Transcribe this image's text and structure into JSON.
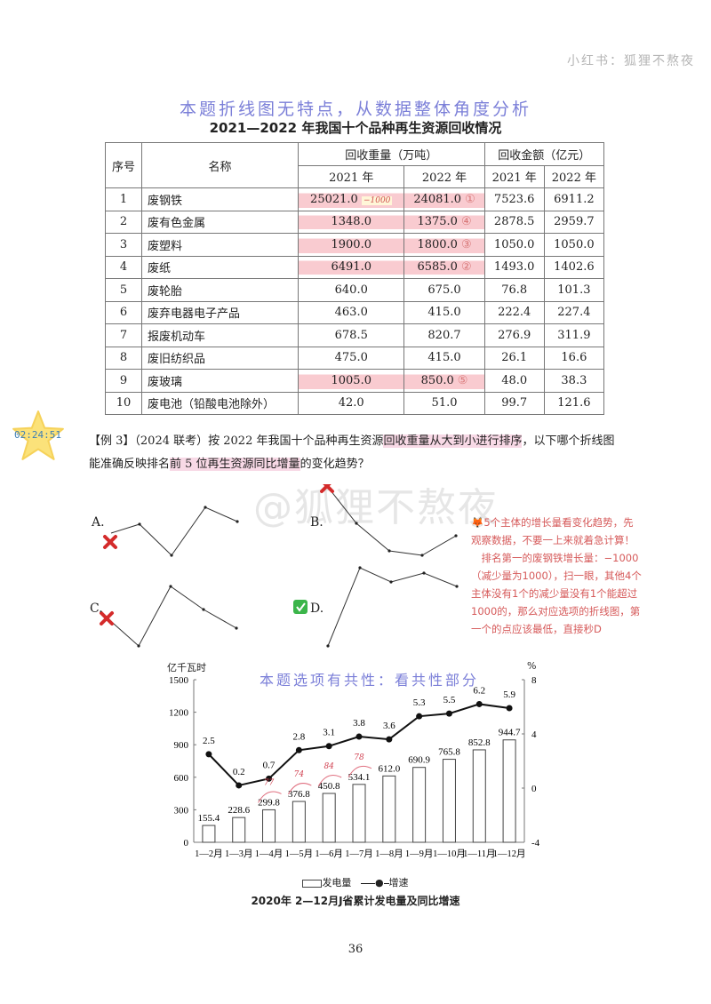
{
  "header": {
    "watermark": "小红书：狐狸不熬夜"
  },
  "annotation_top": "本题折线图无特点，从数据整体角度分析",
  "table": {
    "title": "2021—2022 年我国十个品种再生资源回收情况",
    "headers": {
      "seq": "序号",
      "name": "名称",
      "weight_group": "回收重量（万吨）",
      "amount_group": "回收金额（亿元）",
      "y2021": "2021 年",
      "y2022": "2022 年"
    },
    "rows": [
      {
        "seq": "1",
        "name": "废钢铁",
        "w2021": "25021.0",
        "w2022": "24081.0",
        "a2021": "7523.6",
        "a2022": "6911.2",
        "rank": "①",
        "note": "−1000"
      },
      {
        "seq": "2",
        "name": "废有色金属",
        "w2021": "1348.0",
        "w2022": "1375.0",
        "a2021": "2878.5",
        "a2022": "2959.7",
        "rank": "④"
      },
      {
        "seq": "3",
        "name": "废塑料",
        "w2021": "1900.0",
        "w2022": "1800.0",
        "a2021": "1050.0",
        "a2022": "1050.0",
        "rank": "③"
      },
      {
        "seq": "4",
        "name": "废纸",
        "w2021": "6491.0",
        "w2022": "6585.0",
        "a2021": "1493.0",
        "a2022": "1402.6",
        "rank": "②"
      },
      {
        "seq": "5",
        "name": "废轮胎",
        "w2021": "640.0",
        "w2022": "675.0",
        "a2021": "76.8",
        "a2022": "101.3"
      },
      {
        "seq": "6",
        "name": "废弃电器电子产品",
        "w2021": "463.0",
        "w2022": "415.0",
        "a2021": "222.4",
        "a2022": "227.4"
      },
      {
        "seq": "7",
        "name": "报废机动车",
        "w2021": "678.5",
        "w2022": "820.7",
        "a2021": "276.9",
        "a2022": "311.9"
      },
      {
        "seq": "8",
        "name": "废旧纺织品",
        "w2021": "475.0",
        "w2022": "415.0",
        "a2021": "26.1",
        "a2022": "16.6"
      },
      {
        "seq": "9",
        "name": "废玻璃",
        "w2021": "1005.0",
        "w2022": "850.0",
        "a2021": "48.0",
        "a2022": "38.3",
        "rank": "⑤"
      },
      {
        "seq": "10",
        "name": "废电池（铅酸电池除外）",
        "w2021": "42.0",
        "w2022": "51.0",
        "a2021": "99.7",
        "a2022": "121.6"
      }
    ]
  },
  "timestamp_badge": "02:24:51",
  "question": {
    "prefix": "【例 3】（2024 联考）按 2022 年我国十个品种再生资源",
    "hl1": "回收重量从大到小进行排序",
    "mid": "，以下哪个折线图能准确反映排名",
    "hl2": "前 5 位再生资源同比增量",
    "suffix": "的变化趋势？"
  },
  "watermark_center": "@狐狸不熬夜",
  "options": [
    {
      "label": "A.",
      "mark": "wrong"
    },
    {
      "label": "B.",
      "mark": "wrong"
    },
    {
      "label": "C.",
      "mark": "wrong"
    },
    {
      "label": "D.",
      "mark": "correct"
    }
  ],
  "note_lines": [
    "🦊5个主体的增长量看变化趋势，先",
    "观察数据，不要一上来就着急计算！",
    "　排名第一的废钢铁增长量：−1000",
    "（减少量为1000），扫一眼，其他4个",
    "主体没有1个的减少量没有1个能超过",
    "1000的，那么对应选项的折线图，第",
    "一个的点应该最低，直接秒D"
  ],
  "annotation_chart": "本题选项有共性：看共性部分",
  "chart_data": {
    "type": "bar+line",
    "title": "2020年 2—12月J省累计发电量及同比增速",
    "categories": [
      "1—2月",
      "1—3月",
      "1—4月",
      "1—5月",
      "1—6月",
      "1—7月",
      "1—8月",
      "1—9月",
      "1—10月",
      "1—11月",
      "1—12月"
    ],
    "series": [
      {
        "name": "发电量",
        "type": "bar",
        "axis": "left",
        "values": [
          155.4,
          228.6,
          299.8,
          376.8,
          450.8,
          534.1,
          612.0,
          690.9,
          765.8,
          852.8,
          944.7
        ]
      },
      {
        "name": "增速",
        "type": "line",
        "axis": "right",
        "values": [
          2.5,
          0.2,
          0.7,
          2.8,
          3.1,
          3.8,
          3.6,
          5.3,
          5.5,
          6.2,
          5.9
        ]
      }
    ],
    "ylabel_left": "亿千瓦时",
    "ylim_left": [
      0,
      1500
    ],
    "yticks_left": [
      "0",
      "300",
      "600",
      "900",
      "1200",
      "1500"
    ],
    "ylabel_right": "%",
    "ylim_right": [
      -4,
      8
    ],
    "yticks_right": [
      "-4",
      "0",
      "4",
      "8"
    ],
    "annotations": [
      "77",
      "74",
      "84",
      "78"
    ],
    "legend": [
      "发电量",
      "增速"
    ]
  },
  "page_number": "36"
}
